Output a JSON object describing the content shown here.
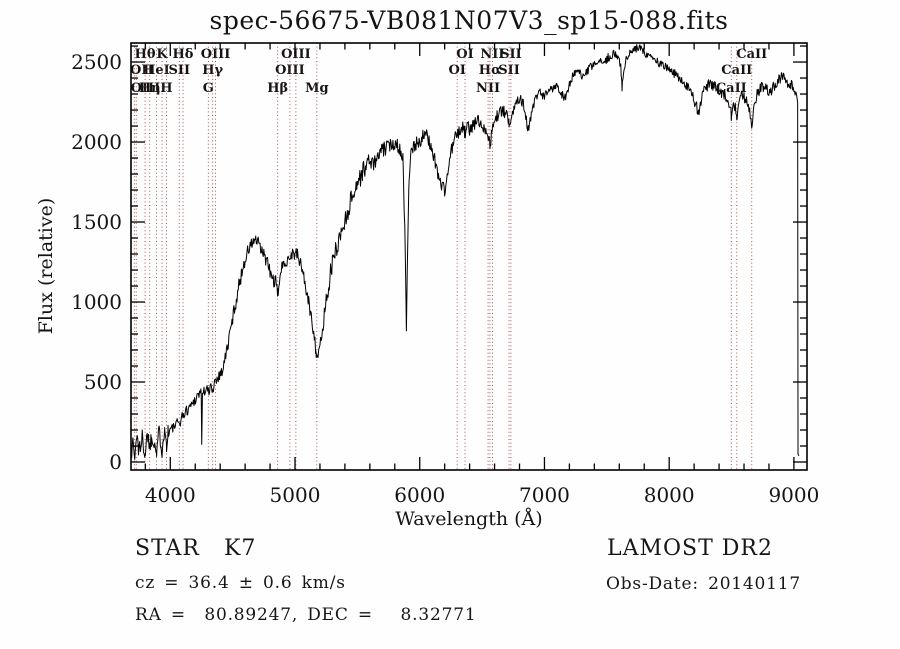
{
  "title": "spec-56675-VB081N07V3_sp15-088.fits",
  "footer": {
    "object_type": "STAR   K7",
    "cz_line": "cz = 36.4 ± 0.6 km/s",
    "radec_line": "RA =  80.89247, DEC =   8.32771",
    "survey": "LAMOST DR2",
    "obs_date": "Obs-Date: 20140117"
  },
  "colors": {
    "spectrum": "#000000",
    "marker_line": "#9e4343",
    "frame": "#000000",
    "text": "#141414"
  },
  "chart_data": {
    "type": "line",
    "title": "spec-56675-VB081N07V3_sp15-088.fits",
    "xlabel": "Wavelength (Å)",
    "ylabel": "Flux (relative)",
    "xlim": [
      3685,
      9105
    ],
    "ylim": [
      -50,
      2619
    ],
    "grid": false,
    "xticks_major": [
      4000,
      5000,
      6000,
      7000,
      8000,
      9000
    ],
    "xtick_minor_step": 200,
    "yticks_major": [
      0,
      500,
      1000,
      1500,
      2000,
      2500
    ],
    "ytick_minor_step": 100,
    "line_markers": {
      "rows_y": [
        58,
        74,
        92
      ],
      "items": [
        {
          "wavelength": 3712,
          "label": "OIII",
          "row": 3
        },
        {
          "wavelength": 3727,
          "label": "OII",
          "row": 2
        },
        {
          "wavelength": 3798,
          "label": "Hθ",
          "row": 1
        },
        {
          "wavelength": 3835,
          "label": "Hη",
          "row": 3
        },
        {
          "wavelength": 3889,
          "label": "HeI",
          "row": 2
        },
        {
          "wavelength": 3934,
          "label": "K",
          "row": 1
        },
        {
          "wavelength": 3969,
          "label": "H",
          "row": 3
        },
        {
          "wavelength": 4072,
          "label": "SII",
          "row": 2
        },
        {
          "wavelength": 4102,
          "label": "Hδ",
          "row": 1
        },
        {
          "wavelength": 4305,
          "label": "G",
          "row": 3
        },
        {
          "wavelength": 4340,
          "label": "Hγ",
          "row": 2
        },
        {
          "wavelength": 4363,
          "label": "OIII",
          "row": 1
        },
        {
          "wavelength": 4861,
          "label": "Hβ",
          "row": 3
        },
        {
          "wavelength": 4959,
          "label": "OIII",
          "row": 2
        },
        {
          "wavelength": 5007,
          "label": "OIII",
          "row": 1
        },
        {
          "wavelength": 5175,
          "label": "Mg",
          "row": 3
        },
        {
          "wavelength": 6300,
          "label": "OI",
          "row": 2
        },
        {
          "wavelength": 6363,
          "label": "OI",
          "row": 1
        },
        {
          "wavelength": 6548,
          "label": "NII",
          "row": 3
        },
        {
          "wavelength": 6563,
          "label": "Hα",
          "row": 2
        },
        {
          "wavelength": 6583,
          "label": "NII",
          "row": 1
        },
        {
          "wavelength": 6716,
          "label": "SII",
          "row": 2
        },
        {
          "wavelength": 6731,
          "label": "SII",
          "row": 1
        },
        {
          "wavelength": 8498,
          "label": "CaII",
          "row": 3
        },
        {
          "wavelength": 8542,
          "label": "CaII",
          "row": 2
        },
        {
          "wavelength": 8662,
          "label": "CaII",
          "row": 1
        }
      ]
    },
    "series": [
      {
        "name": "spectrum",
        "color": "#000000",
        "sample_step": 5,
        "noise_bands": [
          [
            3690,
            4000,
            58
          ],
          [
            4000,
            4410,
            35
          ],
          [
            4410,
            5200,
            45
          ],
          [
            5200,
            5600,
            62
          ],
          [
            5600,
            6400,
            45
          ],
          [
            6400,
            7000,
            38
          ],
          [
            7000,
            8200,
            28
          ],
          [
            8200,
            9028,
            36
          ],
          [
            9028,
            9045,
            4
          ]
        ],
        "anchors": [
          [
            3690,
            60
          ],
          [
            3695,
            140
          ],
          [
            3705,
            90
          ],
          [
            3715,
            30
          ],
          [
            3725,
            120
          ],
          [
            3735,
            160
          ],
          [
            3745,
            80
          ],
          [
            3755,
            140
          ],
          [
            3765,
            60
          ],
          [
            3775,
            150
          ],
          [
            3785,
            110
          ],
          [
            3798,
            50
          ],
          [
            3810,
            140
          ],
          [
            3822,
            170
          ],
          [
            3835,
            90
          ],
          [
            3848,
            150
          ],
          [
            3860,
            120
          ],
          [
            3875,
            160
          ],
          [
            3889,
            50
          ],
          [
            3902,
            160
          ],
          [
            3915,
            180
          ],
          [
            3926,
            120
          ],
          [
            3934,
            70
          ],
          [
            3944,
            170
          ],
          [
            3956,
            190
          ],
          [
            3969,
            110
          ],
          [
            3982,
            190
          ],
          [
            4000,
            200
          ],
          [
            4025,
            215
          ],
          [
            4050,
            235
          ],
          [
            4075,
            250
          ],
          [
            4100,
            290
          ],
          [
            4130,
            320
          ],
          [
            4160,
            350
          ],
          [
            4190,
            380
          ],
          [
            4220,
            420
          ],
          [
            4248,
            440
          ],
          [
            4252,
            110
          ],
          [
            4258,
            430
          ],
          [
            4280,
            450
          ],
          [
            4300,
            450
          ],
          [
            4310,
            430
          ],
          [
            4330,
            480
          ],
          [
            4340,
            450
          ],
          [
            4355,
            500
          ],
          [
            4370,
            520
          ],
          [
            4390,
            540
          ],
          [
            4410,
            560
          ],
          [
            4430,
            620
          ],
          [
            4450,
            680
          ],
          [
            4475,
            790
          ],
          [
            4500,
            900
          ],
          [
            4525,
            1000
          ],
          [
            4550,
            1100
          ],
          [
            4575,
            1190
          ],
          [
            4600,
            1270
          ],
          [
            4625,
            1320
          ],
          [
            4650,
            1360
          ],
          [
            4675,
            1390
          ],
          [
            4700,
            1370
          ],
          [
            4725,
            1330
          ],
          [
            4750,
            1290
          ],
          [
            4775,
            1260
          ],
          [
            4800,
            1180
          ],
          [
            4825,
            1140
          ],
          [
            4845,
            1120
          ],
          [
            4861,
            1040
          ],
          [
            4875,
            1150
          ],
          [
            4900,
            1220
          ],
          [
            4925,
            1260
          ],
          [
            4950,
            1280
          ],
          [
            4975,
            1300
          ],
          [
            5000,
            1310
          ],
          [
            5025,
            1280
          ],
          [
            5050,
            1230
          ],
          [
            5075,
            1140
          ],
          [
            5100,
            1030
          ],
          [
            5125,
            930
          ],
          [
            5150,
            820
          ],
          [
            5168,
            700
          ],
          [
            5180,
            660
          ],
          [
            5195,
            680
          ],
          [
            5210,
            760
          ],
          [
            5225,
            860
          ],
          [
            5245,
            980
          ],
          [
            5265,
            1090
          ],
          [
            5290,
            1200
          ],
          [
            5315,
            1290
          ],
          [
            5340,
            1360
          ],
          [
            5365,
            1420
          ],
          [
            5390,
            1480
          ],
          [
            5420,
            1560
          ],
          [
            5450,
            1640
          ],
          [
            5480,
            1710
          ],
          [
            5510,
            1760
          ],
          [
            5540,
            1810
          ],
          [
            5570,
            1850
          ],
          [
            5600,
            1890
          ],
          [
            5630,
            1860
          ],
          [
            5660,
            1900
          ],
          [
            5690,
            1940
          ],
          [
            5720,
            1960
          ],
          [
            5750,
            1970
          ],
          [
            5780,
            1990
          ],
          [
            5810,
            2000
          ],
          [
            5840,
            1960
          ],
          [
            5865,
            1900
          ],
          [
            5885,
            1300
          ],
          [
            5893,
            820
          ],
          [
            5900,
            1200
          ],
          [
            5912,
            1700
          ],
          [
            5925,
            1900
          ],
          [
            5950,
            1960
          ],
          [
            5975,
            1990
          ],
          [
            6000,
            2010
          ],
          [
            6030,
            2040
          ],
          [
            6060,
            2030
          ],
          [
            6090,
            1980
          ],
          [
            6120,
            1890
          ],
          [
            6150,
            1790
          ],
          [
            6180,
            1720
          ],
          [
            6200,
            1700
          ],
          [
            6220,
            1780
          ],
          [
            6240,
            1890
          ],
          [
            6260,
            1970
          ],
          [
            6280,
            2020
          ],
          [
            6300,
            2040
          ],
          [
            6320,
            2070
          ],
          [
            6340,
            2090
          ],
          [
            6363,
            2060
          ],
          [
            6385,
            2090
          ],
          [
            6410,
            2080
          ],
          [
            6435,
            2110
          ],
          [
            6460,
            2140
          ],
          [
            6485,
            2120
          ],
          [
            6510,
            2100
          ],
          [
            6535,
            2080
          ],
          [
            6563,
            1980
          ],
          [
            6590,
            2110
          ],
          [
            6615,
            2160
          ],
          [
            6640,
            2180
          ],
          [
            6665,
            2200
          ],
          [
            6690,
            2170
          ],
          [
            6716,
            2130
          ],
          [
            6731,
            2150
          ],
          [
            6755,
            2210
          ],
          [
            6780,
            2260
          ],
          [
            6805,
            2290
          ],
          [
            6830,
            2240
          ],
          [
            6855,
            2130
          ],
          [
            6875,
            2080
          ],
          [
            6895,
            2160
          ],
          [
            6915,
            2240
          ],
          [
            6940,
            2280
          ],
          [
            6965,
            2300
          ],
          [
            6990,
            2280
          ],
          [
            7015,
            2300
          ],
          [
            7040,
            2320
          ],
          [
            7065,
            2340
          ],
          [
            7090,
            2360
          ],
          [
            7115,
            2330
          ],
          [
            7140,
            2300
          ],
          [
            7165,
            2280
          ],
          [
            7190,
            2330
          ],
          [
            7215,
            2390
          ],
          [
            7240,
            2430
          ],
          [
            7265,
            2440
          ],
          [
            7290,
            2420
          ],
          [
            7315,
            2400
          ],
          [
            7340,
            2440
          ],
          [
            7365,
            2460
          ],
          [
            7390,
            2480
          ],
          [
            7415,
            2500
          ],
          [
            7440,
            2490
          ],
          [
            7465,
            2500
          ],
          [
            7490,
            2510
          ],
          [
            7515,
            2530
          ],
          [
            7540,
            2545
          ],
          [
            7565,
            2550
          ],
          [
            7590,
            2540
          ],
          [
            7612,
            2480
          ],
          [
            7622,
            2330
          ],
          [
            7632,
            2420
          ],
          [
            7650,
            2500
          ],
          [
            7675,
            2545
          ],
          [
            7700,
            2560
          ],
          [
            7725,
            2575
          ],
          [
            7750,
            2590
          ],
          [
            7775,
            2580
          ],
          [
            7800,
            2560
          ],
          [
            7830,
            2550
          ],
          [
            7860,
            2530
          ],
          [
            7890,
            2510
          ],
          [
            7920,
            2490
          ],
          [
            7950,
            2480
          ],
          [
            7980,
            2460
          ],
          [
            8010,
            2440
          ],
          [
            8040,
            2430
          ],
          [
            8070,
            2410
          ],
          [
            8100,
            2390
          ],
          [
            8130,
            2360
          ],
          [
            8160,
            2330
          ],
          [
            8190,
            2290
          ],
          [
            8220,
            2220
          ],
          [
            8240,
            2190
          ],
          [
            8260,
            2280
          ],
          [
            8290,
            2340
          ],
          [
            8320,
            2360
          ],
          [
            8350,
            2350
          ],
          [
            8380,
            2340
          ],
          [
            8410,
            2320
          ],
          [
            8440,
            2300
          ],
          [
            8470,
            2280
          ],
          [
            8498,
            2170
          ],
          [
            8515,
            2280
          ],
          [
            8542,
            2150
          ],
          [
            8560,
            2280
          ],
          [
            8585,
            2300
          ],
          [
            8610,
            2270
          ],
          [
            8635,
            2230
          ],
          [
            8662,
            2090
          ],
          [
            8680,
            2240
          ],
          [
            8705,
            2300
          ],
          [
            8730,
            2330
          ],
          [
            8755,
            2350
          ],
          [
            8780,
            2330
          ],
          [
            8805,
            2310
          ],
          [
            8830,
            2340
          ],
          [
            8855,
            2370
          ],
          [
            8880,
            2390
          ],
          [
            8905,
            2400
          ],
          [
            8930,
            2390
          ],
          [
            8955,
            2370
          ],
          [
            8980,
            2350
          ],
          [
            9005,
            2330
          ],
          [
            9020,
            2290
          ],
          [
            9030,
            2250
          ],
          [
            9033,
            50
          ],
          [
            9040,
            40
          ]
        ]
      }
    ]
  }
}
